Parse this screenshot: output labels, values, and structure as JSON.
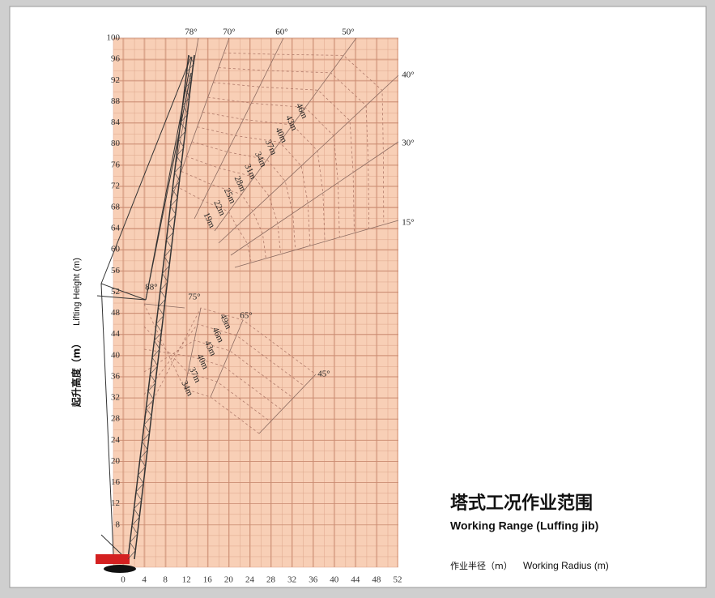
{
  "chart_data": {
    "type": "range",
    "title": "塔式工况作业范围",
    "subtitle": "Working Range (Luffing jib)",
    "x_label_cn": "作业半径（m）",
    "x_label": "Working Radius (m)",
    "y_label_cn": "起升高度（m）",
    "y_label": "Lifting Height (m)",
    "xlim": [
      0,
      52
    ],
    "xticks": [
      0,
      4,
      8,
      12,
      16,
      20,
      24,
      28,
      32,
      36,
      40,
      44,
      48,
      52
    ],
    "ylim": [
      0,
      100
    ],
    "yticks": [
      8,
      12,
      16,
      20,
      24,
      28,
      32,
      36,
      40,
      44,
      48,
      52,
      56,
      60,
      64,
      68,
      72,
      76,
      80,
      84,
      88,
      92,
      96,
      100
    ],
    "grid": true,
    "upper_angles": [
      "78°",
      "70°",
      "60°",
      "50°",
      "40°",
      "30°",
      "15°"
    ],
    "upper_lengths": [
      "46m",
      "43m",
      "40m",
      "37m",
      "34m",
      "31m",
      "28m",
      "25m",
      "22m",
      "19m"
    ],
    "boom_angle": "88°",
    "lower_angles": [
      "75°",
      "65°",
      "45°"
    ],
    "lower_lengths": [
      "49m",
      "46m",
      "43m",
      "40m",
      "37m",
      "34m"
    ]
  }
}
